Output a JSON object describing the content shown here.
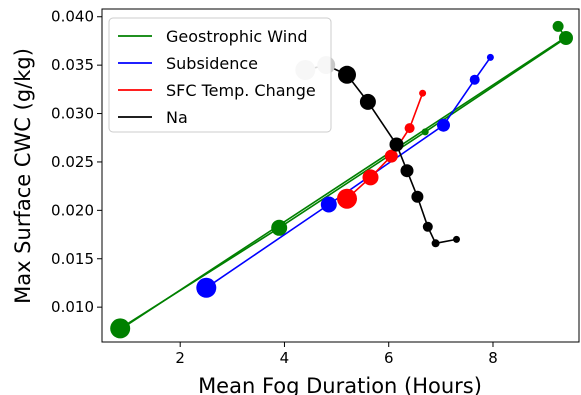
{
  "chart_data": {
    "type": "scatter",
    "xlabel": "Mean Fog Duration (Hours)",
    "ylabel": "Max Surface CWC (g/kg)",
    "xlim": [
      0.5,
      9.65
    ],
    "ylim": [
      0.0064,
      0.0408
    ],
    "xticks": [
      "2",
      "4",
      "6",
      "8"
    ],
    "yticks": [
      "0.010",
      "0.015",
      "0.020",
      "0.025",
      "0.030",
      "0.035",
      "0.040"
    ],
    "grid": false,
    "legend_position": "top-left",
    "series": [
      {
        "name": "Geostrophic Wind",
        "color": "#008000",
        "points": [
          [
            0.85,
            0.0078,
            10
          ],
          [
            3.9,
            0.0182,
            8
          ],
          [
            6.7,
            0.0281,
            3.5
          ],
          [
            9.4,
            0.0378,
            7
          ],
          [
            9.25,
            0.039,
            5.5
          ]
        ],
        "fit": [
          [
            0.85,
            0.0077
          ],
          [
            9.4,
            0.0379
          ]
        ]
      },
      {
        "name": "Subsidence",
        "color": "#0000ff",
        "points": [
          [
            2.5,
            0.012,
            10
          ],
          [
            4.85,
            0.0206,
            8
          ],
          [
            7.05,
            0.0288,
            6.5
          ],
          [
            7.65,
            0.0335,
            5
          ],
          [
            7.95,
            0.0358,
            3.5
          ]
        ]
      },
      {
        "name": "SFC Temp. Change",
        "color": "#ff0000",
        "points": [
          [
            5.2,
            0.0212,
            10
          ],
          [
            5.65,
            0.0234,
            8
          ],
          [
            6.05,
            0.0256,
            6.5
          ],
          [
            6.4,
            0.0285,
            5
          ],
          [
            6.65,
            0.0321,
            3.5
          ]
        ]
      },
      {
        "name": "Na",
        "color": "#000000",
        "points": [
          [
            4.4,
            0.0345,
            10,
            "#c8c8c8"
          ],
          [
            4.8,
            0.035,
            9,
            "#c8c8c8"
          ],
          [
            5.2,
            0.034,
            9
          ],
          [
            5.6,
            0.0312,
            8
          ],
          [
            6.15,
            0.0268,
            7
          ],
          [
            6.35,
            0.0241,
            6.5
          ],
          [
            6.55,
            0.0214,
            6
          ],
          [
            6.75,
            0.0183,
            5
          ],
          [
            6.9,
            0.0166,
            4
          ],
          [
            7.3,
            0.017,
            3.5
          ]
        ]
      }
    ]
  }
}
